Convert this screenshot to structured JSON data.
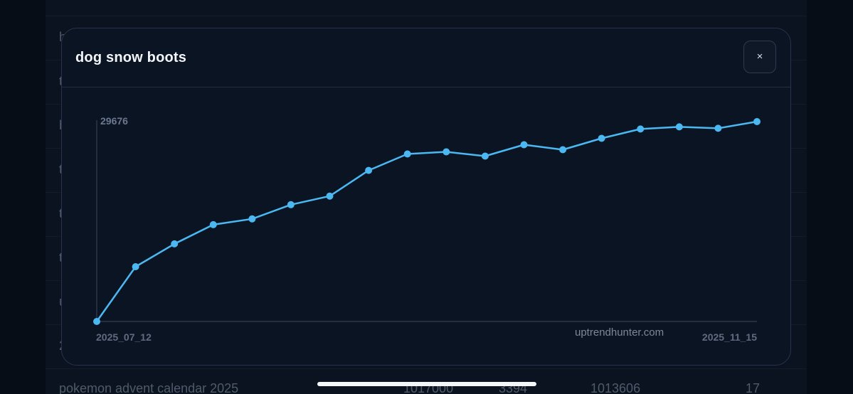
{
  "background_table": {
    "row_initials": [
      "h",
      "t",
      "b",
      "t",
      "t",
      "t",
      "u",
      "2"
    ],
    "last_row": {
      "keyword": "pokemon advent calendar 2025",
      "col1": "1017000",
      "col2": "3394",
      "col3": "1013606",
      "col4": "17"
    }
  },
  "modal": {
    "title": "dog snow boots",
    "close_label": "×"
  },
  "chart_data": {
    "type": "line",
    "y_max_label": "29676",
    "x_start_label": "2025_07_12",
    "x_end_label": "2025_11_15",
    "watermark": "uptrendhunter.com",
    "ylim": [
      0,
      29676
    ],
    "color": "#4bb8f2",
    "series": [
      {
        "values": [
          0,
          8128,
          11518,
          14378,
          15226,
          17345,
          18616,
          22430,
          24867,
          25184,
          24549,
          26243,
          25502,
          27197,
          28574,
          28892,
          28680,
          29676
        ]
      }
    ]
  },
  "colors": {
    "modal_bg": "#0b1422",
    "axis": "#3b475a",
    "label": "#6b7890",
    "line": "#4bb8f2"
  }
}
